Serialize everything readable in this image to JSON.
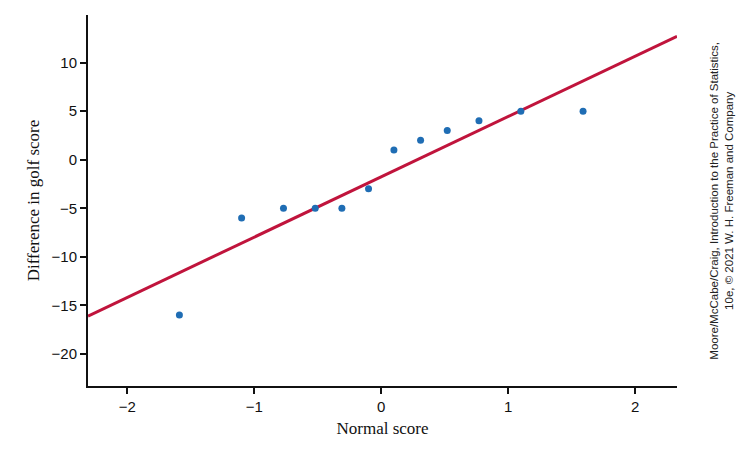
{
  "chart_data": {
    "type": "scatter",
    "x_label": "Normal score",
    "y_label": "Difference in golf score",
    "x": [
      -1.59,
      -1.1,
      -0.77,
      -0.52,
      -0.31,
      -0.1,
      0.1,
      0.31,
      0.52,
      0.77,
      1.1,
      1.59
    ],
    "values": [
      -16,
      -6,
      -5,
      -5,
      -5,
      -3,
      1,
      2,
      3,
      4,
      5,
      5
    ],
    "color": "#1f6db4",
    "marker": "circle",
    "fit_line": {
      "x": [
        -2.31,
        2.33
      ],
      "values": [
        -16.1,
        12.7
      ],
      "color": "#c0143c",
      "line_style": "solid"
    },
    "xlim": [
      -2.31,
      2.33
    ],
    "ylim": [
      -23.3,
      14.9
    ],
    "xticks": [
      {
        "value": -2,
        "label": "−2"
      },
      {
        "value": -1,
        "label": "−1"
      },
      0,
      1,
      2
    ],
    "yticks": [
      {
        "value": -20,
        "label": "−20"
      },
      {
        "value": -15,
        "label": "−15"
      },
      {
        "value": -10,
        "label": "−10"
      },
      {
        "value": -5,
        "label": "−5"
      },
      0,
      5,
      10
    ],
    "grid": false,
    "annotations": [
      {
        "text": [
          "Moore/McCabe/Craig, Introduction to the Practice of Statistics,",
          "10e, © 2021 W. H. Freeman and Company"
        ]
      }
    ]
  }
}
